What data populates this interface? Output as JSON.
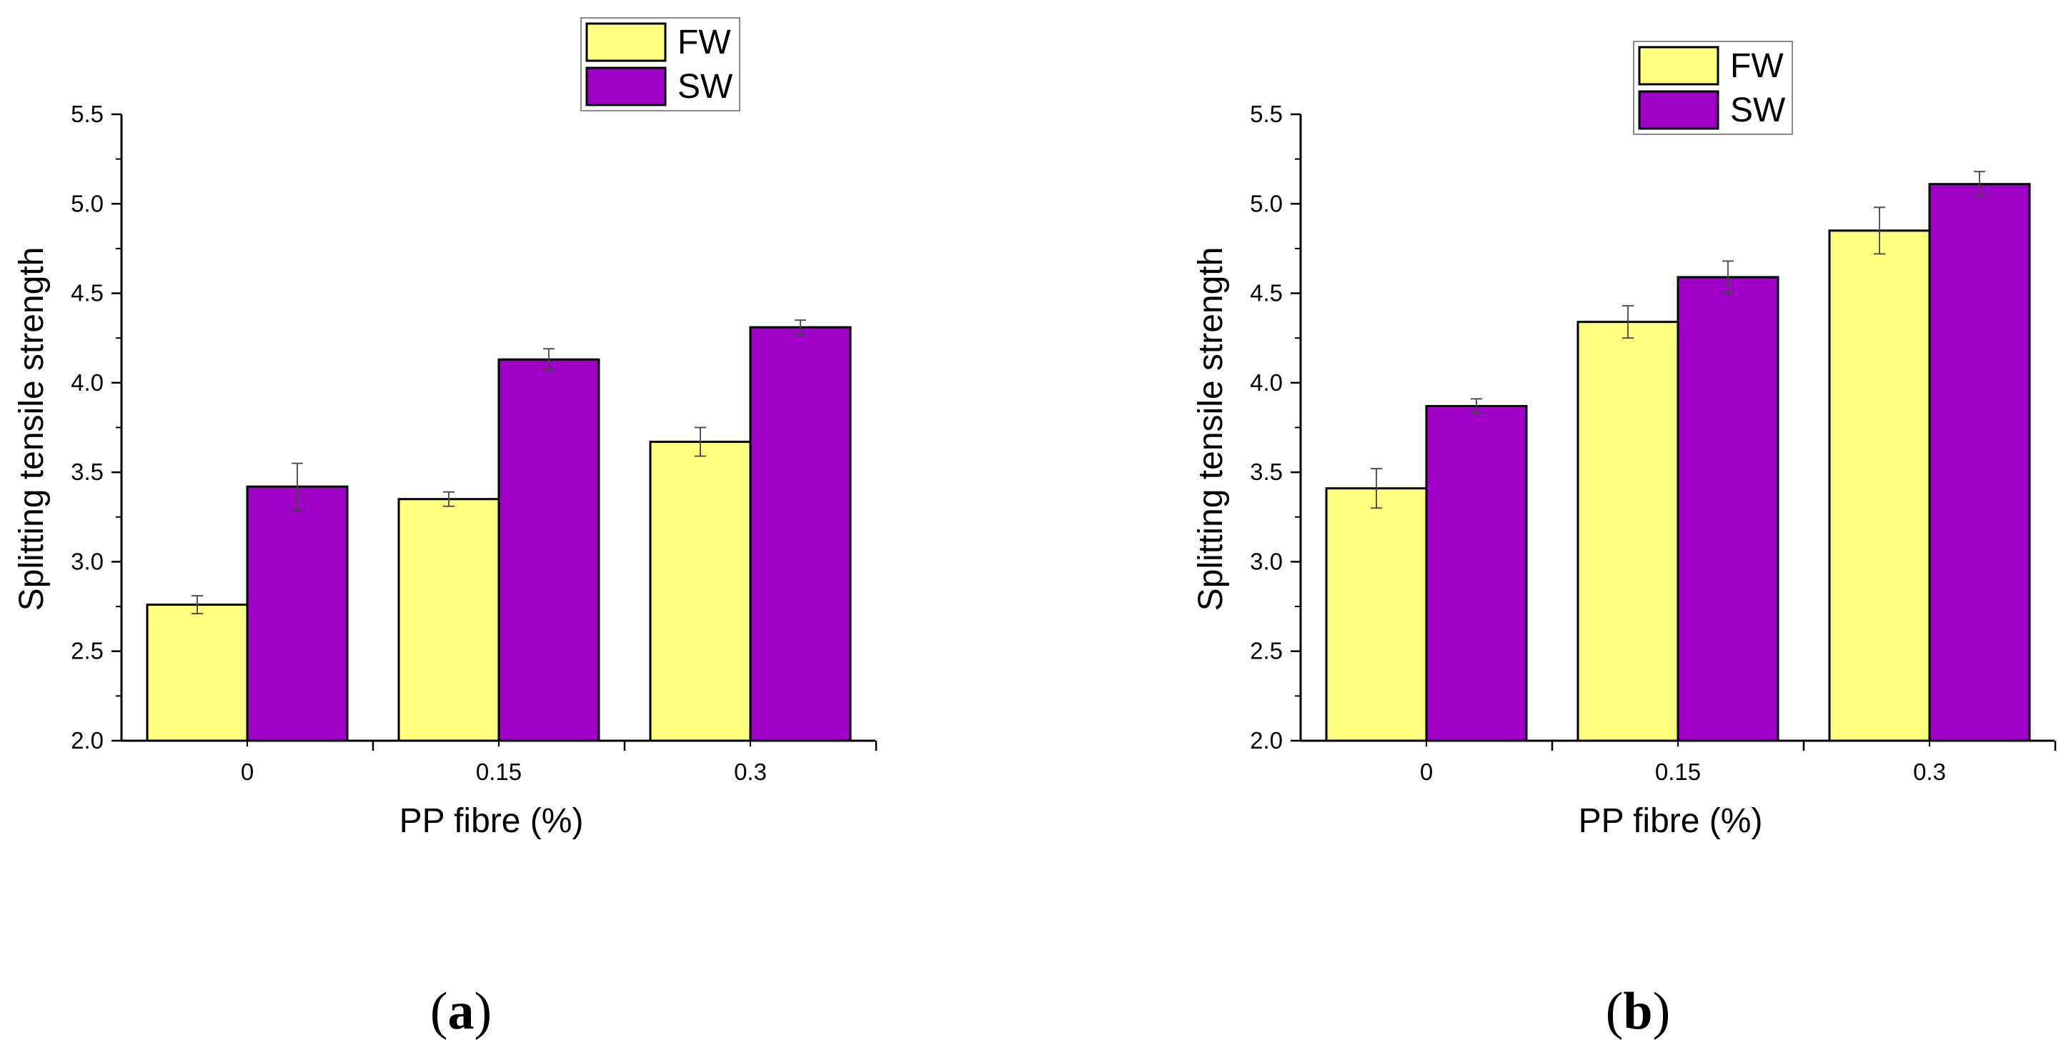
{
  "chart_data": [
    {
      "type": "bar",
      "panel_label": "a",
      "categories": [
        "0",
        "0.15",
        "0.3"
      ],
      "series": [
        {
          "name": "FW",
          "values": [
            2.76,
            3.35,
            3.67
          ],
          "errors": [
            0.05,
            0.04,
            0.08
          ]
        },
        {
          "name": "SW",
          "values": [
            3.42,
            4.13,
            4.31
          ],
          "errors": [
            0.13,
            0.06,
            0.04
          ]
        }
      ],
      "xlabel": "PP fibre (%)",
      "ylabel": "Splitting tensile strength",
      "ylim": [
        2.0,
        5.5
      ],
      "yticks": [
        "2.0",
        "2.5",
        "3.0",
        "3.5",
        "4.0",
        "4.5",
        "5.0",
        "5.5"
      ],
      "legend_position": "top"
    },
    {
      "type": "bar",
      "panel_label": "b",
      "categories": [
        "0",
        "0.15",
        "0.3"
      ],
      "series": [
        {
          "name": "FW",
          "values": [
            3.41,
            4.34,
            4.85
          ],
          "errors": [
            0.11,
            0.09,
            0.13
          ]
        },
        {
          "name": "SW",
          "values": [
            3.87,
            4.59,
            5.11
          ],
          "errors": [
            0.04,
            0.09,
            0.07
          ]
        }
      ],
      "xlabel": "PP fibre (%)",
      "ylabel": "Splitting tensile strength",
      "ylim": [
        2.0,
        5.5
      ],
      "yticks": [
        "2.0",
        "2.5",
        "3.0",
        "3.5",
        "4.0",
        "4.5",
        "5.0",
        "5.5"
      ],
      "legend_position": "top"
    }
  ],
  "colors": {
    "FW": "#ffff80",
    "SW": "#9e00c6",
    "axis": "#000000",
    "errorbar": "#444444"
  }
}
